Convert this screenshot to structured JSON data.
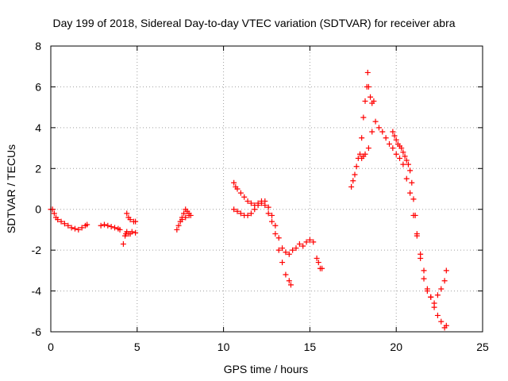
{
  "chart_data": {
    "type": "scatter",
    "title": "Day 199 of 2018, Sidereal Day-to-day VTEC variation (SDTVAR) for receiver abra",
    "xlabel": "GPS time / hours",
    "ylabel": "SDTVAR / TECUs",
    "xlim": [
      0,
      25
    ],
    "ylim": [
      -6,
      8
    ],
    "xticks": [
      0,
      5,
      10,
      15,
      20,
      25
    ],
    "xtick_labels": [
      "0",
      "5",
      "10",
      "15",
      "20",
      "25"
    ],
    "yticks": [
      -6,
      -4,
      -2,
      0,
      2,
      4,
      6,
      8
    ],
    "ytick_labels": [
      "-6",
      "-4",
      "-2",
      "0",
      "2",
      "4",
      "6",
      "8"
    ],
    "grid": true,
    "marker": "+",
    "color": "#ff0000",
    "series": [
      {
        "name": "SDTVAR",
        "x": [
          0.0,
          0.1,
          0.2,
          0.3,
          0.4,
          0.6,
          0.8,
          1.0,
          1.2,
          1.4,
          1.6,
          1.8,
          2.0,
          2.1,
          2.9,
          3.1,
          3.3,
          3.5,
          3.7,
          3.9,
          4.0,
          4.2,
          4.3,
          4.35,
          4.4,
          4.5,
          4.6,
          4.7,
          4.9,
          4.4,
          4.5,
          4.6,
          4.8,
          4.9,
          7.3,
          7.4,
          7.5,
          7.6,
          7.7,
          7.8,
          7.9,
          8.0,
          8.1,
          7.6,
          7.8,
          8.0,
          10.6,
          10.7,
          10.8,
          11.0,
          11.2,
          11.4,
          11.6,
          11.8,
          12.0,
          12.2,
          12.4,
          12.6,
          12.8,
          13.0,
          13.2,
          13.4,
          13.6,
          13.8,
          13.9,
          10.6,
          10.8,
          11.0,
          11.2,
          11.4,
          11.6,
          11.8,
          12.0,
          12.2,
          12.4,
          12.6,
          12.8,
          13.0,
          13.2,
          13.4,
          13.6,
          13.8,
          14.0,
          14.2,
          14.4,
          14.6,
          14.8,
          15.0,
          15.2,
          15.4,
          15.5,
          15.6,
          15.7,
          17.4,
          17.5,
          17.6,
          17.7,
          17.8,
          17.9,
          18.0,
          18.1,
          18.2,
          18.3,
          18.35,
          18.4,
          18.5,
          18.6,
          18.7,
          18.0,
          18.1,
          18.2,
          18.4,
          18.6,
          18.8,
          19.0,
          19.2,
          19.4,
          19.6,
          19.8,
          20.0,
          20.2,
          20.4,
          20.6,
          20.8,
          21.0,
          21.2,
          21.4,
          21.6,
          21.8,
          22.0,
          22.2,
          22.4,
          22.6,
          22.8,
          22.9,
          19.8,
          19.9,
          20.0,
          20.1,
          20.2,
          20.3,
          20.4,
          20.5,
          20.6,
          20.7,
          20.8,
          20.9,
          21.0,
          21.1,
          21.2,
          21.4,
          21.6,
          21.8,
          22.0,
          22.2,
          22.4,
          22.6,
          22.8,
          22.9
        ],
        "y": [
          0.0,
          0.0,
          -0.2,
          -0.4,
          -0.5,
          -0.6,
          -0.7,
          -0.8,
          -0.9,
          -0.95,
          -1.0,
          -0.9,
          -0.8,
          -0.75,
          -0.8,
          -0.75,
          -0.8,
          -0.85,
          -0.9,
          -0.95,
          -1.0,
          -1.7,
          -1.3,
          -1.2,
          -1.1,
          -1.2,
          -1.2,
          -1.1,
          -1.15,
          -0.2,
          -0.4,
          -0.5,
          -0.6,
          -0.6,
          -1.0,
          -0.8,
          -0.6,
          -0.4,
          -0.2,
          0.0,
          -0.1,
          -0.2,
          -0.3,
          -0.5,
          -0.4,
          -0.3,
          1.3,
          1.1,
          1.0,
          0.8,
          0.6,
          0.4,
          0.3,
          0.2,
          0.3,
          0.4,
          0.2,
          -0.2,
          -0.6,
          -1.2,
          -2.0,
          -2.6,
          -3.2,
          -3.5,
          -3.7,
          0.0,
          -0.1,
          -0.2,
          -0.3,
          -0.3,
          -0.2,
          0.0,
          0.2,
          0.3,
          0.4,
          0.1,
          -0.3,
          -0.8,
          -1.4,
          -1.9,
          -2.1,
          -2.2,
          -2.0,
          -1.9,
          -1.7,
          -1.8,
          -1.6,
          -1.5,
          -1.6,
          -2.4,
          -2.6,
          -2.9,
          -2.9,
          1.1,
          1.4,
          1.7,
          2.1,
          2.5,
          2.7,
          3.5,
          4.5,
          5.3,
          6.0,
          6.7,
          6.0,
          5.5,
          5.2,
          5.3,
          2.5,
          2.6,
          2.7,
          3.0,
          3.8,
          4.3,
          4.0,
          3.8,
          3.5,
          3.2,
          3.0,
          2.7,
          2.5,
          2.2,
          1.5,
          0.8,
          -0.3,
          -1.3,
          -2.2,
          -3.0,
          -3.9,
          -4.3,
          -4.8,
          -5.2,
          -5.5,
          -5.8,
          -5.7,
          3.8,
          3.6,
          3.4,
          3.2,
          3.1,
          3.0,
          2.8,
          2.6,
          2.4,
          2.2,
          1.9,
          1.3,
          0.5,
          -0.3,
          -1.2,
          -2.4,
          -3.4,
          -4.0,
          -4.3,
          -4.6,
          -4.2,
          -3.9,
          -3.5,
          -3.0
        ]
      }
    ]
  }
}
